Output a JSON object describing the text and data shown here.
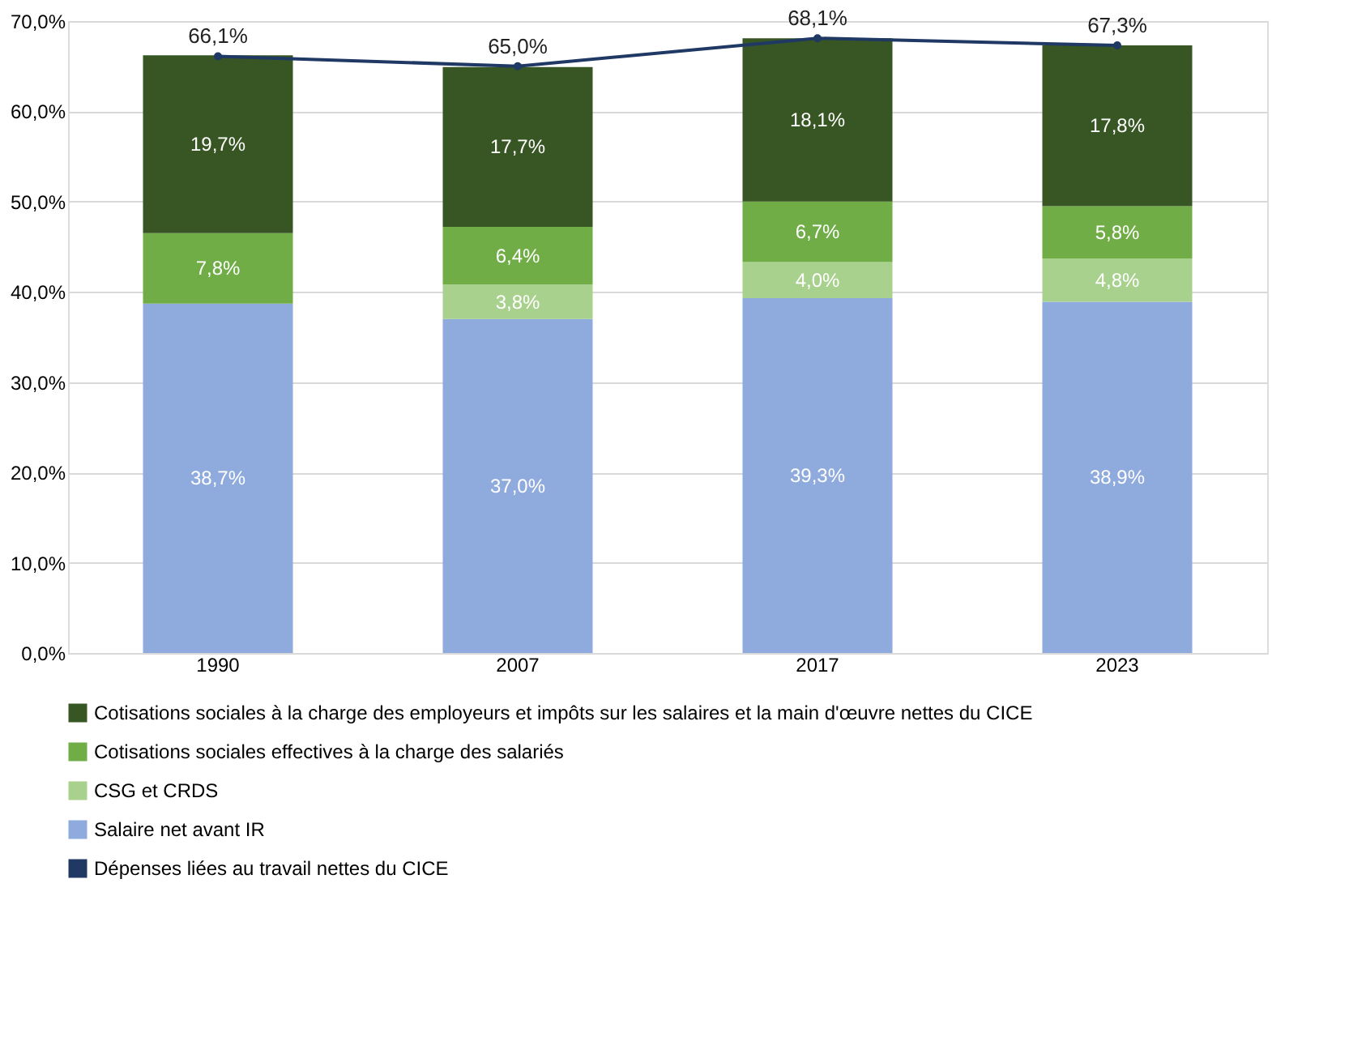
{
  "chart_data": {
    "type": "bar",
    "stacked": true,
    "categories": [
      "1990",
      "2007",
      "2017",
      "2023"
    ],
    "series": [
      {
        "name": "Salaire net avant IR",
        "color": "#8faadc",
        "values": [
          38.7,
          37.0,
          39.3,
          38.9
        ],
        "value_labels": [
          "38,7%",
          "37,0%",
          "39,3%",
          "38,9%"
        ]
      },
      {
        "name": "CSG et CRDS",
        "color": "#a9d18e",
        "values": [
          null,
          3.8,
          4.0,
          4.8
        ],
        "value_labels": [
          null,
          "3,8%",
          "4,0%",
          "4,8%"
        ]
      },
      {
        "name": "Cotisations sociales effectives à la charge des salariés",
        "color": "#70ad47",
        "values": [
          7.8,
          6.4,
          6.7,
          5.8
        ],
        "value_labels": [
          "7,8%",
          "6,4%",
          "6,7%",
          "5,8%"
        ]
      },
      {
        "name": "Cotisations sociales à la charge des employeurs et impôts sur les salaires et la main d'œuvre nettes du CICE",
        "color": "#375623",
        "values": [
          19.7,
          17.7,
          18.1,
          17.8
        ],
        "value_labels": [
          "19,7%",
          "17,7%",
          "18,1%",
          "17,8%"
        ]
      },
      {
        "name": "Dépenses liées au travail nettes du CICE",
        "type": "line",
        "color": "#1f3864",
        "marker": "circle",
        "values": [
          66.1,
          65.0,
          68.1,
          67.3
        ],
        "value_labels": [
          "66,1%",
          "65,0%",
          "68,1%",
          "67,3%"
        ]
      }
    ],
    "ylim": [
      0,
      70
    ],
    "yticks": [
      {
        "value": 0,
        "label": "0,0%"
      },
      {
        "value": 10,
        "label": "10,0%"
      },
      {
        "value": 20,
        "label": "20,0%"
      },
      {
        "value": 30,
        "label": "30,0%"
      },
      {
        "value": 40,
        "label": "40,0%"
      },
      {
        "value": 50,
        "label": "50,0%"
      },
      {
        "value": 60,
        "label": "60,0%"
      },
      {
        "value": 70,
        "label": "70,0%"
      }
    ],
    "grid": "y",
    "legend": "bottom"
  }
}
